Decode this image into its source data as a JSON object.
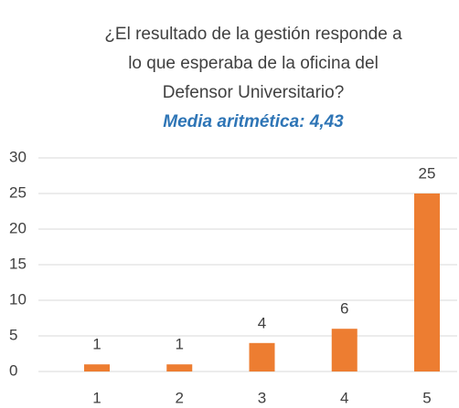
{
  "chart_data": {
    "type": "bar",
    "title": [
      "¿El resultado de la gestión responde a",
      "lo que esperaba de la oficina del",
      "Defensor Universitario?"
    ],
    "subtitle": "Media aritmética: 4,43",
    "categories": [
      "1",
      "2",
      "3",
      "4",
      "5"
    ],
    "values": [
      1,
      1,
      4,
      6,
      25
    ],
    "color": "#ED7D31",
    "ylim": [
      0,
      30
    ],
    "yticks": [
      0,
      5,
      10,
      15,
      20,
      25,
      30
    ],
    "grid": true
  }
}
